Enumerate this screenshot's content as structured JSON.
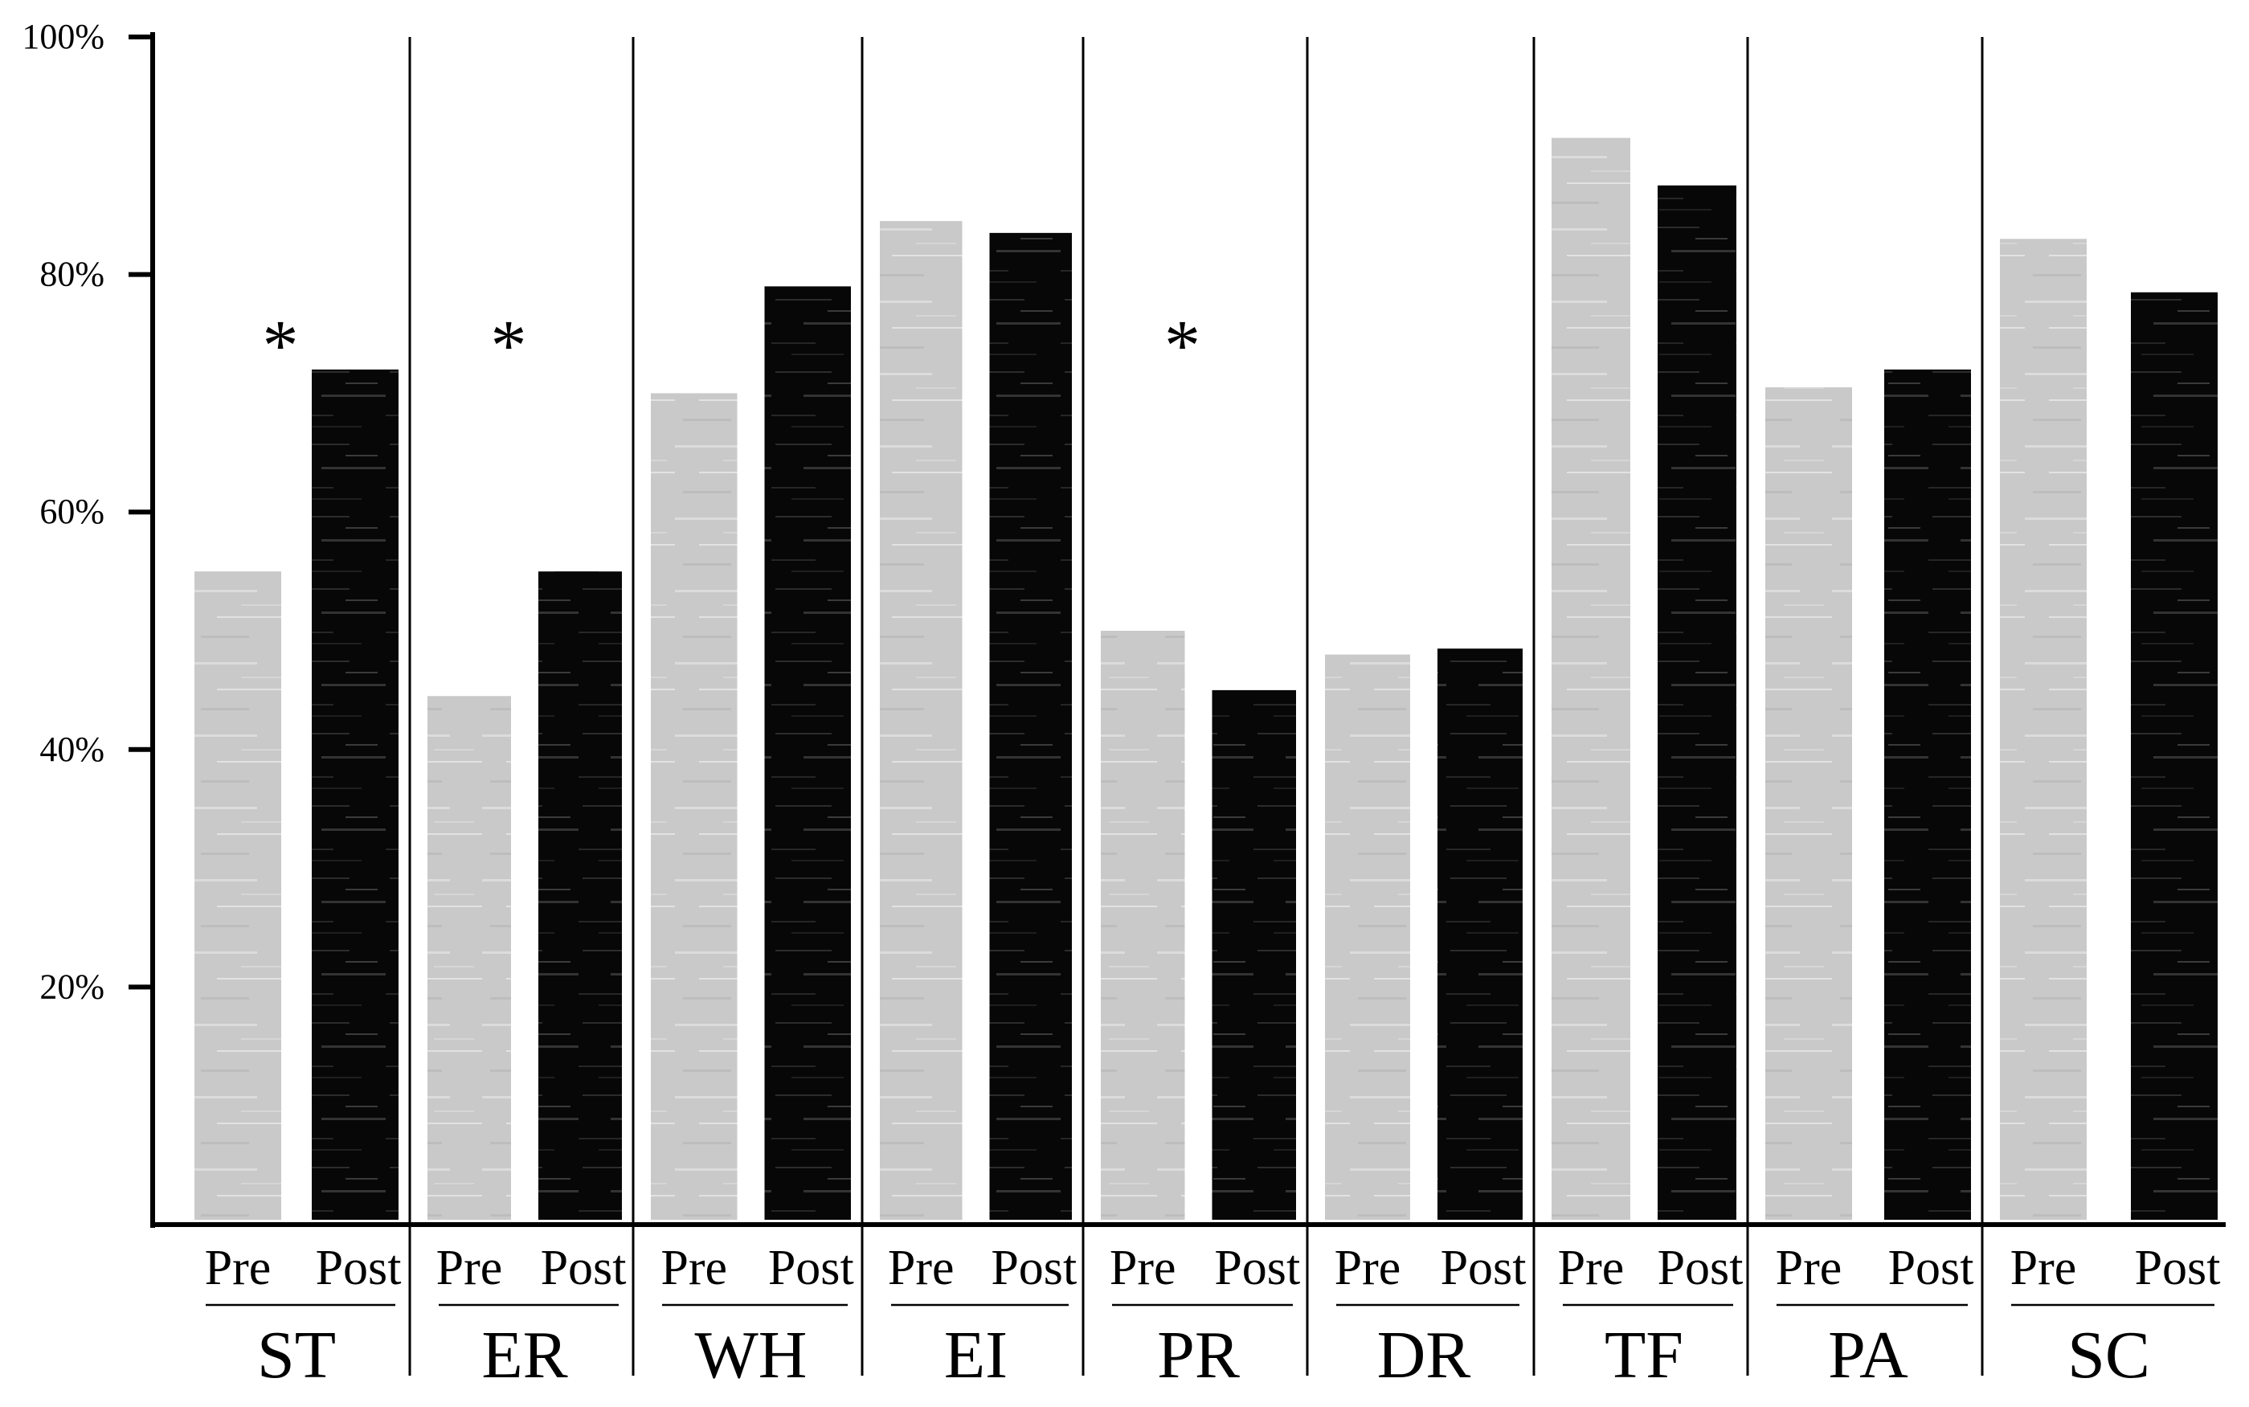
{
  "chart_data": {
    "type": "bar",
    "title": "",
    "xlabel": "",
    "ylabel": "",
    "ylim": [
      0,
      100
    ],
    "yticks": [
      {
        "value": 20,
        "label": "20%"
      },
      {
        "value": 40,
        "label": "40%"
      },
      {
        "value": 60,
        "label": "60%"
      },
      {
        "value": 80,
        "label": "80%"
      },
      {
        "value": 100,
        "label": "100%"
      }
    ],
    "sub_categories": [
      "Pre",
      "Post"
    ],
    "series": [
      {
        "name": "Pre",
        "color": "#c8c8c8"
      },
      {
        "name": "Post",
        "color": "#0a0a0a"
      }
    ],
    "groups": [
      {
        "label": "ST",
        "pre": 55,
        "post": 72,
        "significant": true,
        "marker": "*"
      },
      {
        "label": "ER",
        "pre": 44.5,
        "post": 55,
        "significant": true,
        "marker": "*"
      },
      {
        "label": "WH",
        "pre": 70,
        "post": 79,
        "significant": false,
        "marker": ""
      },
      {
        "label": "EI",
        "pre": 84.5,
        "post": 83.5,
        "significant": false,
        "marker": ""
      },
      {
        "label": "PR",
        "pre": 50,
        "post": 45,
        "significant": true,
        "marker": "*"
      },
      {
        "label": "DR",
        "pre": 48,
        "post": 48.5,
        "significant": false,
        "marker": ""
      },
      {
        "label": "TF",
        "pre": 91.5,
        "post": 87.5,
        "significant": false,
        "marker": ""
      },
      {
        "label": "PA",
        "pre": 70.5,
        "post": 72,
        "significant": false,
        "marker": ""
      },
      {
        "label": "SC",
        "pre": 83,
        "post": 78.5,
        "significant": false,
        "marker": ""
      }
    ]
  }
}
